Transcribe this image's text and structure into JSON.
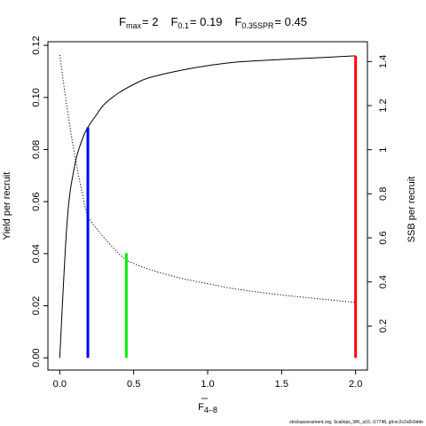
{
  "chart_data": {
    "type": "line",
    "title_parts": {
      "fmax_label": "F",
      "fmax_sub": "max",
      "fmax_value": "= 2",
      "f01_label": "F",
      "f01_sub": "0.1",
      "f01_value": "= 0.19",
      "fspr_label": "F",
      "fspr_sub": "0.35SPR",
      "fspr_value": "= 0.45"
    },
    "xlabel": {
      "main": "F",
      "sub": "4–8"
    },
    "ylabel_left": "Yield per recruit",
    "ylabel_right": "SSB per recruit",
    "xlim": [
      -0.08,
      2.08
    ],
    "ylim_left": [
      -0.0047,
      0.1214
    ],
    "ylim_right": [
      0,
      1.49
    ],
    "x_ticks": [
      {
        "value": 0,
        "label": "0.0"
      },
      {
        "value": 0.5,
        "label": "0.5"
      },
      {
        "value": 1,
        "label": "1.0"
      },
      {
        "value": 1.5,
        "label": "1.5"
      },
      {
        "value": 2,
        "label": "2.0"
      }
    ],
    "y_left_ticks": [
      {
        "value": 0,
        "label": "0.00"
      },
      {
        "value": 0.02,
        "label": "0.02"
      },
      {
        "value": 0.04,
        "label": "0.04"
      },
      {
        "value": 0.06,
        "label": "0.06"
      },
      {
        "value": 0.08,
        "label": "0.08"
      },
      {
        "value": 0.1,
        "label": "0.10"
      },
      {
        "value": 0.12,
        "label": "0.12"
      }
    ],
    "y_right_ticks": [
      {
        "value": 0.2,
        "label": "0.2"
      },
      {
        "value": 0.4,
        "label": "0.4"
      },
      {
        "value": 0.6,
        "label": "0.6"
      },
      {
        "value": 0.8,
        "label": "0.8"
      },
      {
        "value": 1.0,
        "label": "1"
      },
      {
        "value": 1.2,
        "label": "1.2"
      },
      {
        "value": 1.4,
        "label": "1.4"
      }
    ],
    "series": [
      {
        "axis": "left",
        "style": "solid",
        "color": "#000000",
        "x": [
          0,
          0.05,
          0.1,
          0.15,
          0.19,
          0.25,
          0.3,
          0.4,
          0.5,
          0.6,
          0.8,
          1.0,
          1.2,
          1.5,
          1.8,
          2.0
        ],
        "y": [
          0,
          0.0525,
          0.0736,
          0.0836,
          0.0885,
          0.0935,
          0.0973,
          0.1018,
          0.105,
          0.1075,
          0.1102,
          0.1122,
          0.1136,
          0.1146,
          0.1154,
          0.116
        ]
      },
      {
        "axis": "right",
        "style": "dotted",
        "color": "#000000",
        "x": [
          0,
          0.05,
          0.1,
          0.15,
          0.19,
          0.25,
          0.3,
          0.4,
          0.45,
          0.5,
          0.6,
          0.8,
          1.0,
          1.2,
          1.5,
          1.8,
          2.0
        ],
        "y": [
          1.43,
          1.187,
          0.98,
          0.809,
          0.7,
          0.641,
          0.6,
          0.528,
          0.5,
          0.484,
          0.458,
          0.42,
          0.392,
          0.367,
          0.341,
          0.32,
          0.307
        ]
      }
    ],
    "reference_lines": [
      {
        "name": "F0.1",
        "x": 0.19,
        "y_left": 0.0885,
        "color": "#0000ff"
      },
      {
        "name": "F0.35SPR",
        "x": 0.45,
        "y_left": 0.0402,
        "color": "#00ee00"
      },
      {
        "name": "Fmax",
        "x": 2.0,
        "y_left": 0.116,
        "color": "#ff0000"
      }
    ],
    "grid": false,
    "legend": "none"
  },
  "footer": "stockassessment.org, Scallops_WK_a10, r17748, git:ec2c2a0c6dde"
}
